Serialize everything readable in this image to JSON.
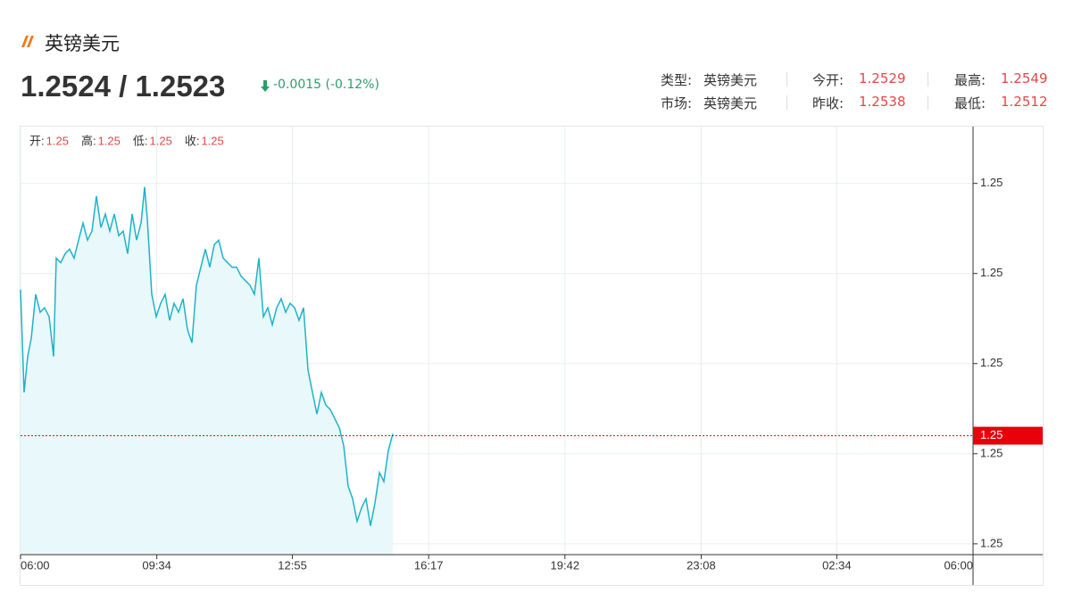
{
  "header": {
    "title": "英镑美元",
    "price": "1.2524 / 1.2523",
    "change": "-0.0015 (-0.12%)"
  },
  "info": [
    {
      "label": "类型:",
      "value": "英镑美元"
    },
    {
      "label": "今开:",
      "value": "1.2529"
    },
    {
      "label": "最高:",
      "value": "1.2549"
    },
    {
      "label": "市场:",
      "value": "英镑美元"
    },
    {
      "label": "昨收:",
      "value": "1.2538"
    },
    {
      "label": "最低:",
      "value": "1.2512"
    }
  ],
  "ohlc": [
    {
      "label": "开:",
      "value": "1.25"
    },
    {
      "label": "高:",
      "value": "1.25"
    },
    {
      "label": "低:",
      "value": "1.25"
    },
    {
      "label": "收:",
      "value": "1.25"
    }
  ],
  "chart_data": {
    "type": "line",
    "x": [
      0,
      5.4,
      10.8,
      16.2,
      22.9,
      29.7,
      36.4,
      43.2,
      49.9,
      54.0,
      60.7,
      67.5,
      74.2,
      81.0,
      87.7,
      94.5,
      101.2,
      108.0,
      114.7,
      121.5,
      128.2,
      135.0,
      141.7,
      148.5,
      155.2,
      162.0,
      168.7,
      175.4,
      182.2,
      187.6,
      191.6,
      198.4,
      205.1,
      211.9,
      218.6,
      225.4,
      232.1,
      238.9,
      245.6,
      252.4,
      259.1,
      265.9,
      272.6,
      279.4,
      286.1,
      292.9,
      299.6,
      306.4,
      313.1,
      319.9,
      326.6,
      333.4,
      340.1,
      346.8,
      353.6,
      360.3,
      367.1,
      373.8,
      380.6,
      387.3,
      394.1,
      400.8,
      407.6,
      414.3,
      421.1,
      427.8,
      434.6,
      441.3,
      448.1,
      454.8,
      461.6,
      468.3,
      475.1,
      481.8,
      488.6,
      495.3,
      502.1,
      508.8,
      515.6,
      522.3,
      529.1,
      535.8,
      542.6,
      549.3,
      556.1,
      562.8
    ],
    "series": [
      {
        "color": "#1db3c8",
        "values": [
          1.25382,
          1.25268,
          1.25308,
          1.25328,
          1.25377,
          1.25357,
          1.25362,
          1.25352,
          1.25308,
          1.25417,
          1.25412,
          1.25422,
          1.25427,
          1.25417,
          1.25437,
          1.25456,
          1.25437,
          1.25447,
          1.25486,
          1.25451,
          1.25466,
          1.25447,
          1.25466,
          1.25442,
          1.25447,
          1.25422,
          1.25466,
          1.25437,
          1.25456,
          1.25496,
          1.25461,
          1.25377,
          1.25352,
          1.25367,
          1.25377,
          1.25348,
          1.25367,
          1.25357,
          1.25372,
          1.25338,
          1.25323,
          1.25387,
          1.25407,
          1.25427,
          1.25407,
          1.25432,
          1.25437,
          1.25417,
          1.25412,
          1.25407,
          1.25407,
          1.25397,
          1.25392,
          1.25387,
          1.25377,
          1.25417,
          1.25352,
          1.25362,
          1.25343,
          1.25362,
          1.25372,
          1.25357,
          1.25367,
          1.25362,
          1.25348,
          1.25362,
          1.25293,
          1.25268,
          1.25244,
          1.25268,
          1.25254,
          1.25249,
          1.25239,
          1.25229,
          1.25209,
          1.25164,
          1.2515,
          1.25125,
          1.2514,
          1.2515,
          1.2512,
          1.25145,
          1.25179,
          1.25169,
          1.25204,
          1.25222
        ]
      }
    ],
    "area_color": "#e9f8fa",
    "xlim": [
      0,
      1440
    ],
    "xticks": [
      {
        "value": 0,
        "label": "06:00"
      },
      {
        "value": 206,
        "label": "09:34"
      },
      {
        "value": 411,
        "label": "12:55"
      },
      {
        "value": 617,
        "label": "16:17"
      },
      {
        "value": 823,
        "label": "19:42"
      },
      {
        "value": 1029,
        "label": "23:08"
      },
      {
        "value": 1234,
        "label": "02:34"
      },
      {
        "value": 1440,
        "label": "06:00"
      }
    ],
    "ylim": [
      1.25088,
      1.25563
    ],
    "yticks": [
      {
        "value": 1.255,
        "label": "1.25"
      },
      {
        "value": 1.254,
        "label": "1.25"
      },
      {
        "value": 1.253,
        "label": "1.25"
      },
      {
        "value": 1.252,
        "label": "1.25"
      },
      {
        "value": 1.251,
        "label": "1.25"
      }
    ],
    "grid": true,
    "price_line": {
      "value": 1.2522,
      "label": "1.25",
      "color": "#e8000b"
    }
  }
}
